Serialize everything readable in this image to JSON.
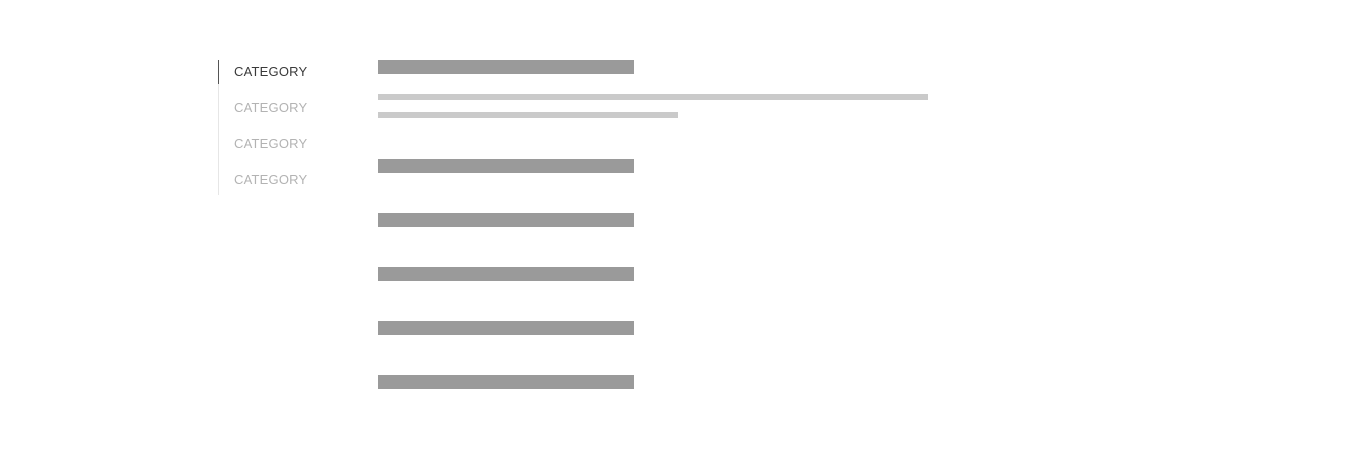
{
  "sidebar": {
    "items": [
      {
        "label": "CATEGORY",
        "active": true
      },
      {
        "label": "CATEGORY",
        "active": false
      },
      {
        "label": "CATEGORY",
        "active": false
      },
      {
        "label": "CATEGORY",
        "active": false
      }
    ]
  },
  "colors": {
    "active_text": "#3a3a3a",
    "inactive_text": "#b3b3b3",
    "heading_placeholder": "#9a9a9a",
    "text_placeholder": "#cacaca",
    "divider": "#e6e6e6"
  }
}
